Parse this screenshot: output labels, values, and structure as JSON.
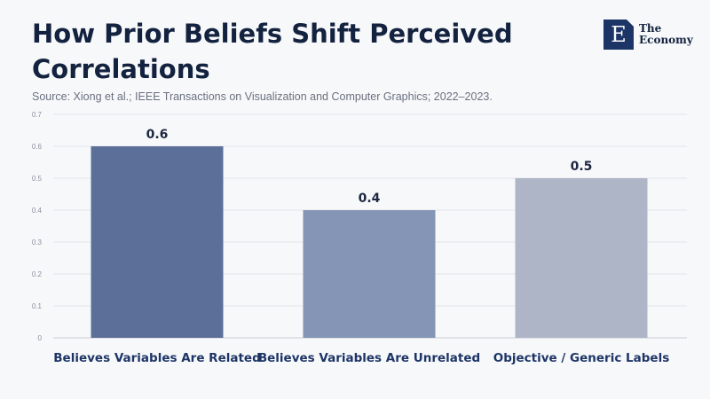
{
  "header": {
    "title": "How Prior Beliefs Shift Perceived Correlations",
    "source": "Source: Xiong et al.; IEEE Transactions on Visualization and Computer Graphics; 2022–2023."
  },
  "logo": {
    "letter": "E",
    "line1": "The",
    "line2": "Economy",
    "color": "#1d3566"
  },
  "chart_data": {
    "type": "bar",
    "categories": [
      "Believes Variables Are Related",
      "Believes Variables Are Unrelated",
      "Objective / Generic Labels"
    ],
    "values": [
      0.6,
      0.4,
      0.5
    ],
    "data_labels": [
      "0.6",
      "0.4",
      "0.5"
    ],
    "bar_colors": [
      "#5b6f98",
      "#8495b5",
      "#adb5c7"
    ],
    "ylim": [
      0,
      0.7
    ],
    "yticks": [
      0,
      0.1,
      0.2,
      0.3,
      0.4,
      0.5,
      0.6,
      0.7
    ],
    "ytick_labels": [
      "0",
      "0.1",
      "0.2",
      "0.3",
      "0.4",
      "0.5",
      "0.6",
      "0.7"
    ],
    "grid": true,
    "legend": "none"
  }
}
